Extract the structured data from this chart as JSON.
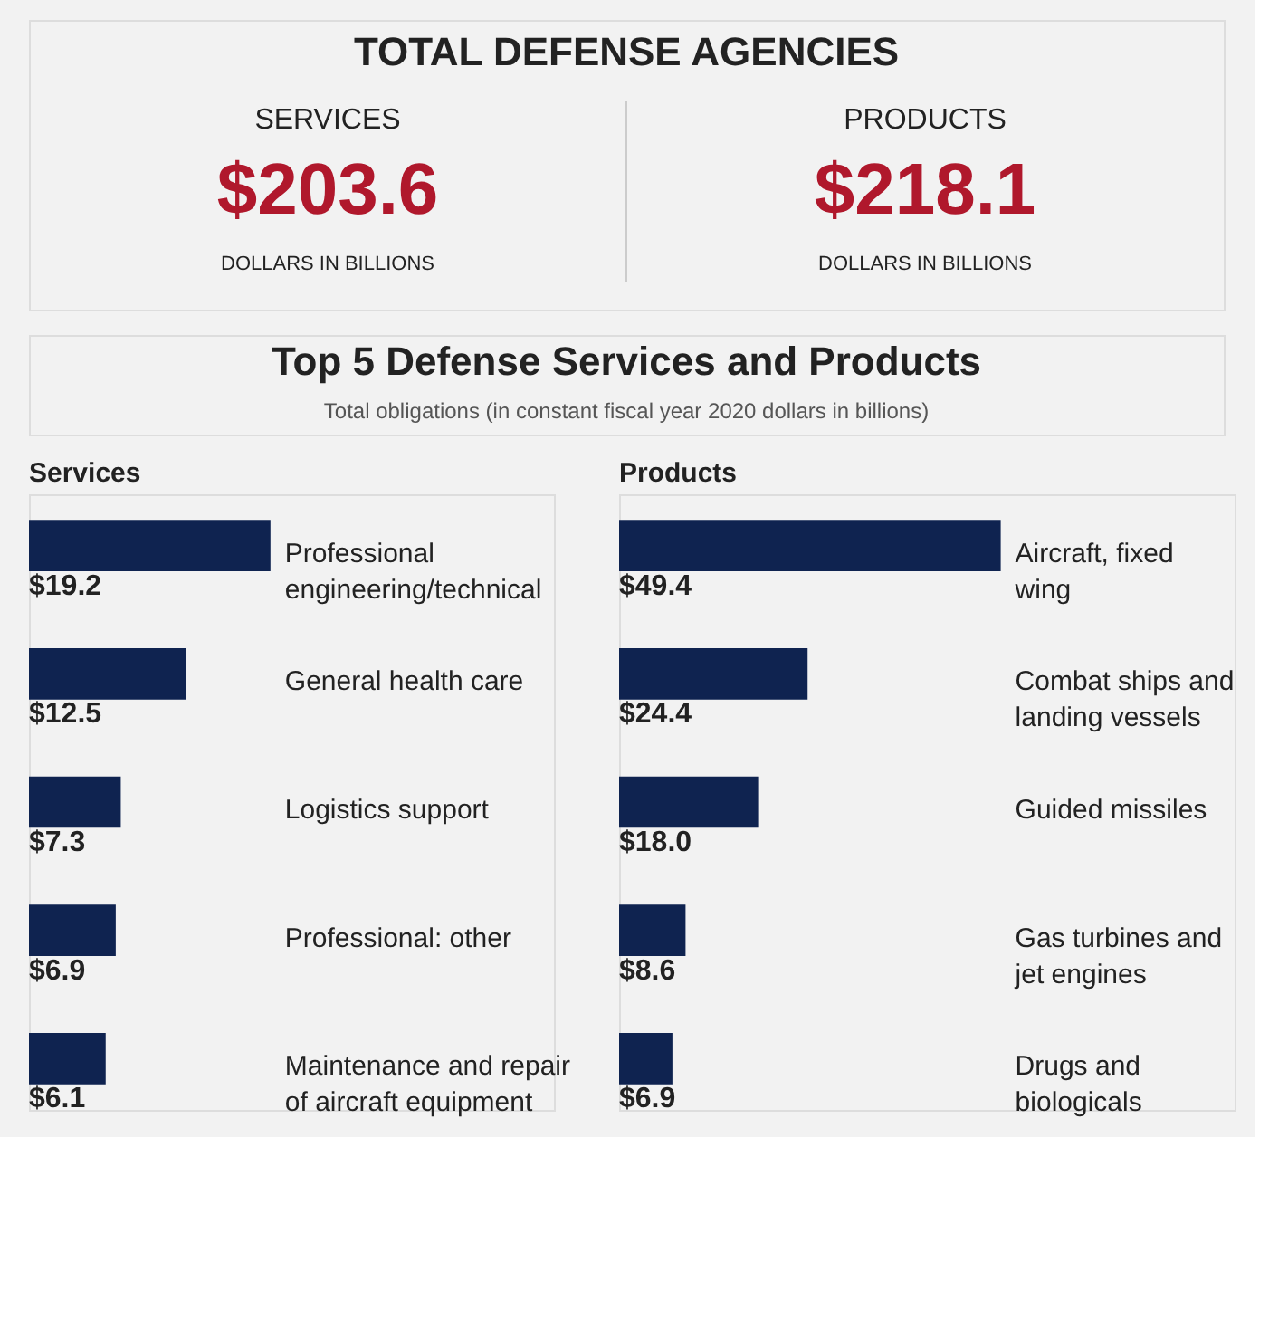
{
  "chart_data": [
    {
      "type": "other",
      "title": "TOTAL DEFENSE AGENCIES",
      "annotations": [
        "SERVICES",
        "$203.6",
        "DOLLARS IN BILLIONS",
        "PRODUCTS",
        "$218.1",
        "DOLLARS IN BILLIONS"
      ]
    },
    {
      "type": "other",
      "title": "Top 5 Defense Services and Products",
      "subtitle": "Total obligations (in constant fiscal year 2020 dollars in billions)"
    },
    {
      "type": "bar",
      "orientation": "horizontal",
      "title": "Services",
      "color": "#0f2350",
      "categories": [
        "Professional engineering/technical",
        "General health care",
        "Logistics support",
        "Professional: other",
        "Maintenance and repair of aircraft equipment"
      ],
      "values": [
        19.2,
        12.5,
        7.3,
        6.9,
        6.1
      ],
      "value_labels": [
        "$19.2",
        "$12.5",
        "$7.3",
        "$6.9",
        "$6.1"
      ]
    },
    {
      "type": "bar",
      "orientation": "horizontal",
      "title": "Products",
      "color": "#0f2350",
      "categories": [
        "Aircraft, fixed wing",
        "Combat ships and landing vessels",
        "Guided missiles",
        "Gas turbines and jet engines",
        "Drugs and biologicals"
      ],
      "values": [
        49.4,
        24.4,
        18.0,
        8.6,
        6.9
      ],
      "value_labels": [
        "$49.4",
        "$24.4",
        "$18.0",
        "$8.6",
        "$6.9"
      ]
    }
  ]
}
